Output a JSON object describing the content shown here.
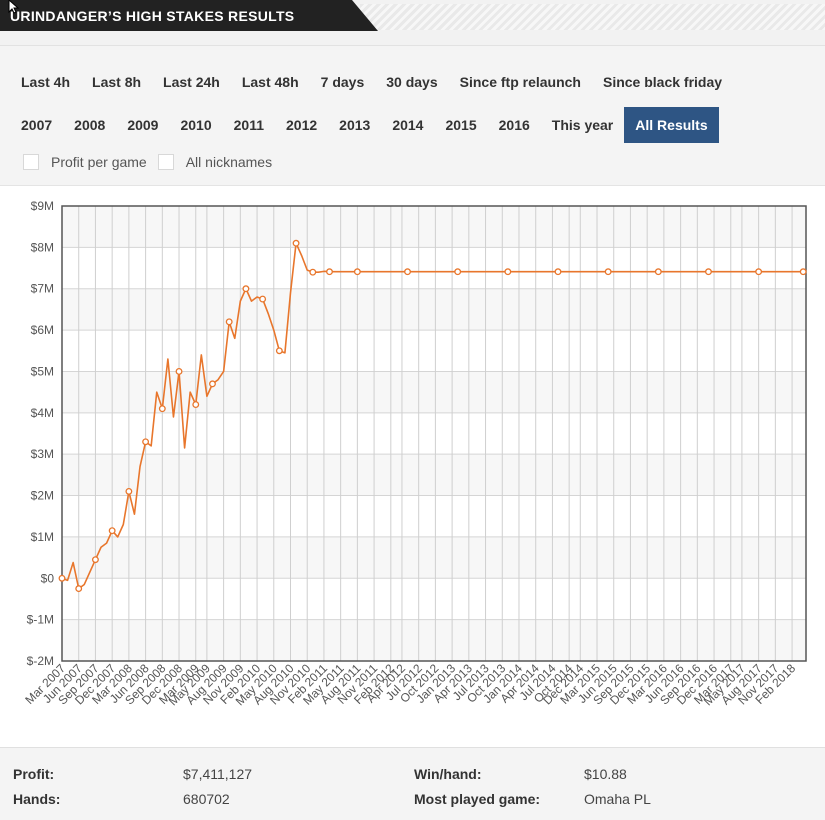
{
  "header": {
    "title": "URINDANGER’S HIGH STAKES RESULTS"
  },
  "filters": {
    "row1": [
      "Last 4h",
      "Last 8h",
      "Last 24h",
      "Last 48h",
      "7 days",
      "30 days",
      "Since ftp relaunch",
      "Since black friday"
    ],
    "row2": [
      "2007",
      "2008",
      "2009",
      "2010",
      "2011",
      "2012",
      "2013",
      "2014",
      "2015",
      "2016",
      "This year",
      "All Results"
    ],
    "active": "All Results",
    "checkboxes": [
      {
        "label": "Profit per game",
        "checked": false
      },
      {
        "label": "All nicknames",
        "checked": false
      }
    ]
  },
  "chart_data": {
    "type": "line",
    "title": "",
    "xlabel": "",
    "ylabel": "",
    "ylim": [
      -2000000,
      9000000
    ],
    "y_ticks": [
      "$-2M",
      "$-1M",
      "$0",
      "$1M",
      "$2M",
      "$3M",
      "$4M",
      "$5M",
      "$6M",
      "$7M",
      "$8M",
      "$9M"
    ],
    "x_ticks": [
      "Mar 2007",
      "Jun 2007",
      "Sep 2007",
      "Dec 2007",
      "Mar 2008",
      "Jun 2008",
      "Sep 2008",
      "Dec 2008",
      "Mar 2009",
      "May 2009",
      "Aug 2009",
      "Nov 2009",
      "Feb 2010",
      "May 2010",
      "Aug 2010",
      "Nov 2010",
      "Feb 2011",
      "May 2011",
      "Aug 2011",
      "Nov 2011",
      "Feb 2012",
      "Apr 2012",
      "Jul 2012",
      "Oct 2012",
      "Jan 2013",
      "Apr 2013",
      "Jul 2013",
      "Oct 2013",
      "Jan 2014",
      "Apr 2014",
      "Jul 2014",
      "Oct 2014",
      "Dec 2014",
      "Mar 2015",
      "Jun 2015",
      "Sep 2015",
      "Dec 2015",
      "Mar 2016",
      "Jun 2016",
      "Sep 2016",
      "Dec 2016",
      "Mar 2017",
      "May 2017",
      "Aug 2017",
      "Nov 2017",
      "Feb 2018"
    ],
    "grid": true,
    "color": "#e8762c",
    "series": [
      {
        "x": [
          "2007-03",
          "2007-04",
          "2007-05",
          "2007-06",
          "2007-07",
          "2007-08",
          "2007-09",
          "2007-10",
          "2007-11",
          "2007-12",
          "2008-01",
          "2008-02",
          "2008-03",
          "2008-04",
          "2008-05",
          "2008-06",
          "2008-07",
          "2008-08",
          "2008-09",
          "2008-10",
          "2008-11",
          "2008-12",
          "2009-01",
          "2009-02",
          "2009-03",
          "2009-04",
          "2009-05",
          "2009-06",
          "2009-07",
          "2009-08",
          "2009-09",
          "2009-10",
          "2009-11",
          "2009-12",
          "2010-01",
          "2010-02",
          "2010-03",
          "2010-04",
          "2010-05",
          "2010-06",
          "2010-07",
          "2010-08",
          "2010-09",
          "2010-10",
          "2010-11",
          "2010-12",
          "2011-01",
          "2011-02",
          "2011-03",
          "2011-04",
          "2011-05",
          "2011-08",
          "2011-11",
          "2012-02",
          "2012-05",
          "2012-08",
          "2012-11",
          "2013-02",
          "2013-05",
          "2013-08",
          "2013-11",
          "2014-02",
          "2014-05",
          "2014-08",
          "2014-11",
          "2015-02",
          "2015-05",
          "2015-08",
          "2015-11",
          "2016-02",
          "2016-05",
          "2016-08",
          "2016-11",
          "2017-02",
          "2017-05",
          "2017-08",
          "2017-11",
          "2018-02",
          "2018-04"
        ],
        "y": [
          0,
          -50000,
          380000,
          -250000,
          -150000,
          150000,
          450000,
          750000,
          850000,
          1150000,
          1000000,
          1300000,
          2100000,
          1550000,
          2700000,
          3300000,
          3200000,
          4500000,
          4100000,
          5300000,
          3900000,
          5000000,
          3150000,
          4500000,
          4200000,
          5400000,
          4400000,
          4700000,
          4800000,
          5000000,
          6200000,
          5800000,
          6700000,
          7000000,
          6700000,
          6800000,
          6750000,
          6400000,
          6000000,
          5500000,
          5450000,
          6900000,
          8100000,
          7800000,
          7450000,
          7400000,
          7400000,
          7420000,
          7411127,
          7411127,
          7411127,
          7411127,
          7411127,
          7411127,
          7411127,
          7411127,
          7411127,
          7411127,
          7411127,
          7411127,
          7411127,
          7411127,
          7411127,
          7411127,
          7411127,
          7411127,
          7411127,
          7411127,
          7411127,
          7411127,
          7411127,
          7411127,
          7411127,
          7411127,
          7411127,
          7411127,
          7411127,
          7411127,
          7411127
        ]
      }
    ]
  },
  "stats": {
    "profit_label": "Profit:",
    "profit_value": "$7,411,127",
    "hands_label": "Hands:",
    "hands_value": "680702",
    "winhand_label": "Win/hand:",
    "winhand_value": "$10.88",
    "game_label": "Most played game:",
    "game_value": "Omaha PL"
  }
}
